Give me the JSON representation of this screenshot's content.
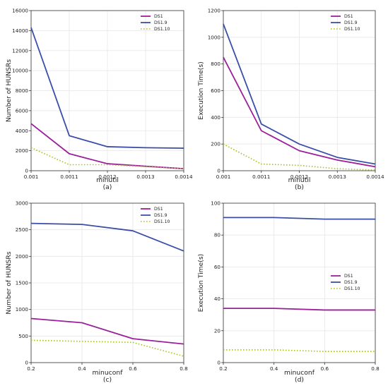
{
  "colors": {
    "DS1": "#9b1f9a",
    "DS1.9": "#3a4ea8",
    "DS1.10": "#a8c51f",
    "grid": "#e6e6e6",
    "axis": "#333333"
  },
  "chart_data": [
    {
      "type": "line",
      "sublabel": "(a)",
      "xlabel": "minutil",
      "ylabel": "Number of HUNSRs",
      "x": [
        0.001,
        0.0011,
        0.0012,
        0.0013,
        0.0014
      ],
      "xticks": [
        "0.001",
        "0.0011",
        "0.0012",
        "0.0013",
        "0.0014"
      ],
      "xlim": [
        0.001,
        0.0014
      ],
      "ylim": [
        0,
        16000
      ],
      "yticks": [
        "0",
        "2000",
        "4000",
        "6000",
        "8000",
        "10000",
        "12000",
        "14000",
        "16000"
      ],
      "grid": true,
      "legend_position": "top-right",
      "series": [
        {
          "name": "DS1",
          "style": "solid",
          "values": [
            4700,
            1700,
            700,
            450,
            200
          ]
        },
        {
          "name": "DS1.9",
          "style": "solid",
          "values": [
            14300,
            3500,
            2400,
            2300,
            2250
          ]
        },
        {
          "name": "DS1.10",
          "style": "dotted",
          "values": [
            2300,
            600,
            600,
            400,
            200
          ]
        }
      ]
    },
    {
      "type": "line",
      "sublabel": "(b)",
      "xlabel": "minutil",
      "ylabel": "Execution Time(s)",
      "x": [
        0.001,
        0.0011,
        0.0012,
        0.0013,
        0.0014
      ],
      "xticks": [
        "0.001",
        "0.0011",
        "0.0012",
        "0.0013",
        "0.0014"
      ],
      "xlim": [
        0.001,
        0.0014
      ],
      "ylim": [
        0,
        1200
      ],
      "yticks": [
        "0",
        "200",
        "400",
        "600",
        "800",
        "1000",
        "1200"
      ],
      "grid": true,
      "legend_position": "top-right",
      "series": [
        {
          "name": "DS1",
          "style": "solid",
          "values": [
            850,
            300,
            150,
            80,
            30
          ]
        },
        {
          "name": "DS1.9",
          "style": "solid",
          "values": [
            1100,
            350,
            200,
            100,
            50
          ]
        },
        {
          "name": "DS1.10",
          "style": "dotted",
          "values": [
            200,
            50,
            40,
            15,
            5
          ]
        }
      ]
    },
    {
      "type": "line",
      "sublabel": "(c)",
      "xlabel": "minuconf",
      "ylabel": "Number of HUNSRs",
      "x": [
        0.2,
        0.4,
        0.6,
        0.8
      ],
      "xticks": [
        "0.2",
        "0.4",
        "0.6",
        "0.8"
      ],
      "xlim": [
        0.2,
        0.8
      ],
      "ylim": [
        0,
        3000
      ],
      "yticks": [
        "0",
        "500",
        "1000",
        "1500",
        "2000",
        "2500",
        "3000"
      ],
      "grid": true,
      "legend_position": "top-right",
      "series": [
        {
          "name": "DS1",
          "style": "solid",
          "values": [
            830,
            750,
            450,
            350
          ]
        },
        {
          "name": "DS1.9",
          "style": "solid",
          "values": [
            2620,
            2600,
            2480,
            2100
          ]
        },
        {
          "name": "DS1.10",
          "style": "dotted",
          "values": [
            420,
            400,
            380,
            120
          ]
        }
      ]
    },
    {
      "type": "line",
      "sublabel": "(d)",
      "xlabel": "minuconf",
      "ylabel": "Execution Time(s)",
      "x": [
        0.2,
        0.4,
        0.6,
        0.8
      ],
      "xticks": [
        "0.2",
        "0.4",
        "0.6",
        "0.8"
      ],
      "xlim": [
        0.2,
        0.8
      ],
      "ylim": [
        0,
        100
      ],
      "yticks": [
        "0",
        "20",
        "40",
        "60",
        "80",
        "100"
      ],
      "grid": true,
      "legend_position": "right",
      "series": [
        {
          "name": "DS1",
          "style": "solid",
          "values": [
            34,
            34,
            33,
            33
          ]
        },
        {
          "name": "DS1.9",
          "style": "solid",
          "values": [
            91,
            91,
            90,
            90
          ]
        },
        {
          "name": "DS1.10",
          "style": "dotted",
          "values": [
            8,
            8,
            7,
            7
          ]
        }
      ]
    }
  ]
}
